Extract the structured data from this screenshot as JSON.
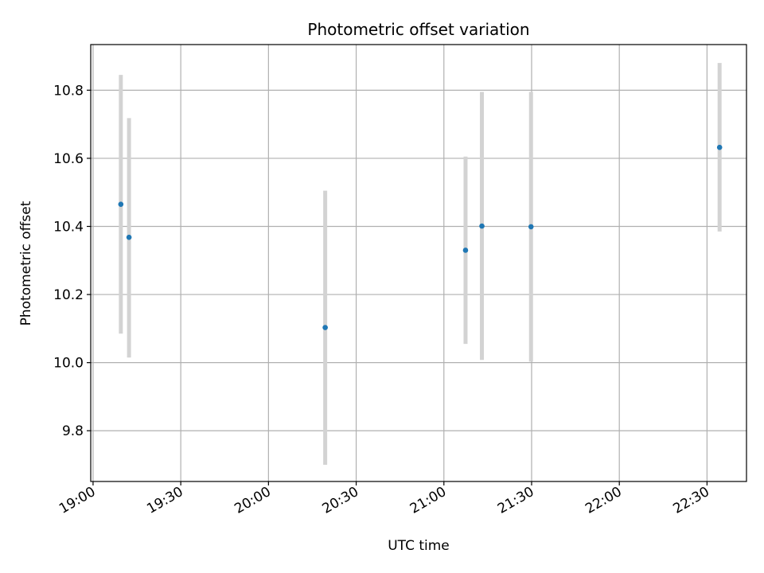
{
  "chart_data": {
    "type": "scatter",
    "title": "Photometric offset variation",
    "xlabel": "UTC time",
    "ylabel": "Photometric offset",
    "xlim_minutes": [
      1139.2,
      1363.5
    ],
    "ylim": [
      9.651,
      10.934
    ],
    "grid": true,
    "x_ticks": [
      {
        "minutes": 1140,
        "label": "19:00"
      },
      {
        "minutes": 1170,
        "label": "19:30"
      },
      {
        "minutes": 1200,
        "label": "20:00"
      },
      {
        "minutes": 1230,
        "label": "20:30"
      },
      {
        "minutes": 1260,
        "label": "21:00"
      },
      {
        "minutes": 1290,
        "label": "21:30"
      },
      {
        "minutes": 1320,
        "label": "22:00"
      },
      {
        "minutes": 1350,
        "label": "22:30"
      }
    ],
    "y_ticks": [
      {
        "value": 9.8,
        "label": "9.8"
      },
      {
        "value": 10.0,
        "label": "10.0"
      },
      {
        "value": 10.2,
        "label": "10.2"
      },
      {
        "value": 10.4,
        "label": "10.4"
      },
      {
        "value": 10.6,
        "label": "10.6"
      },
      {
        "value": 10.8,
        "label": "10.8"
      }
    ],
    "series": [
      {
        "name": "Photometric offset",
        "points": [
          {
            "time": "19:09",
            "minutes": 1149.5,
            "y": 10.465,
            "err_low": 10.085,
            "err_high": 10.845
          },
          {
            "time": "19:12",
            "minutes": 1152.3,
            "y": 10.368,
            "err_low": 10.015,
            "err_high": 10.718
          },
          {
            "time": "20:19",
            "minutes": 1219.4,
            "y": 10.103,
            "err_low": 9.7,
            "err_high": 10.505
          },
          {
            "time": "21:07",
            "minutes": 1267.4,
            "y": 10.33,
            "err_low": 10.055,
            "err_high": 10.605
          },
          {
            "time": "21:13",
            "minutes": 1273.0,
            "y": 10.401,
            "err_low": 10.008,
            "err_high": 10.795
          },
          {
            "time": "21:29",
            "minutes": 1289.8,
            "y": 10.399,
            "err_low": 10.003,
            "err_high": 10.795
          },
          {
            "time": "22:33",
            "minutes": 1354.3,
            "y": 10.632,
            "err_low": 10.385,
            "err_high": 10.88
          }
        ]
      }
    ],
    "colors": {
      "marker": "#1f77b4",
      "errorbar": "#d3d3d3",
      "grid": "#b0b0b0",
      "axes": "#000000"
    }
  }
}
